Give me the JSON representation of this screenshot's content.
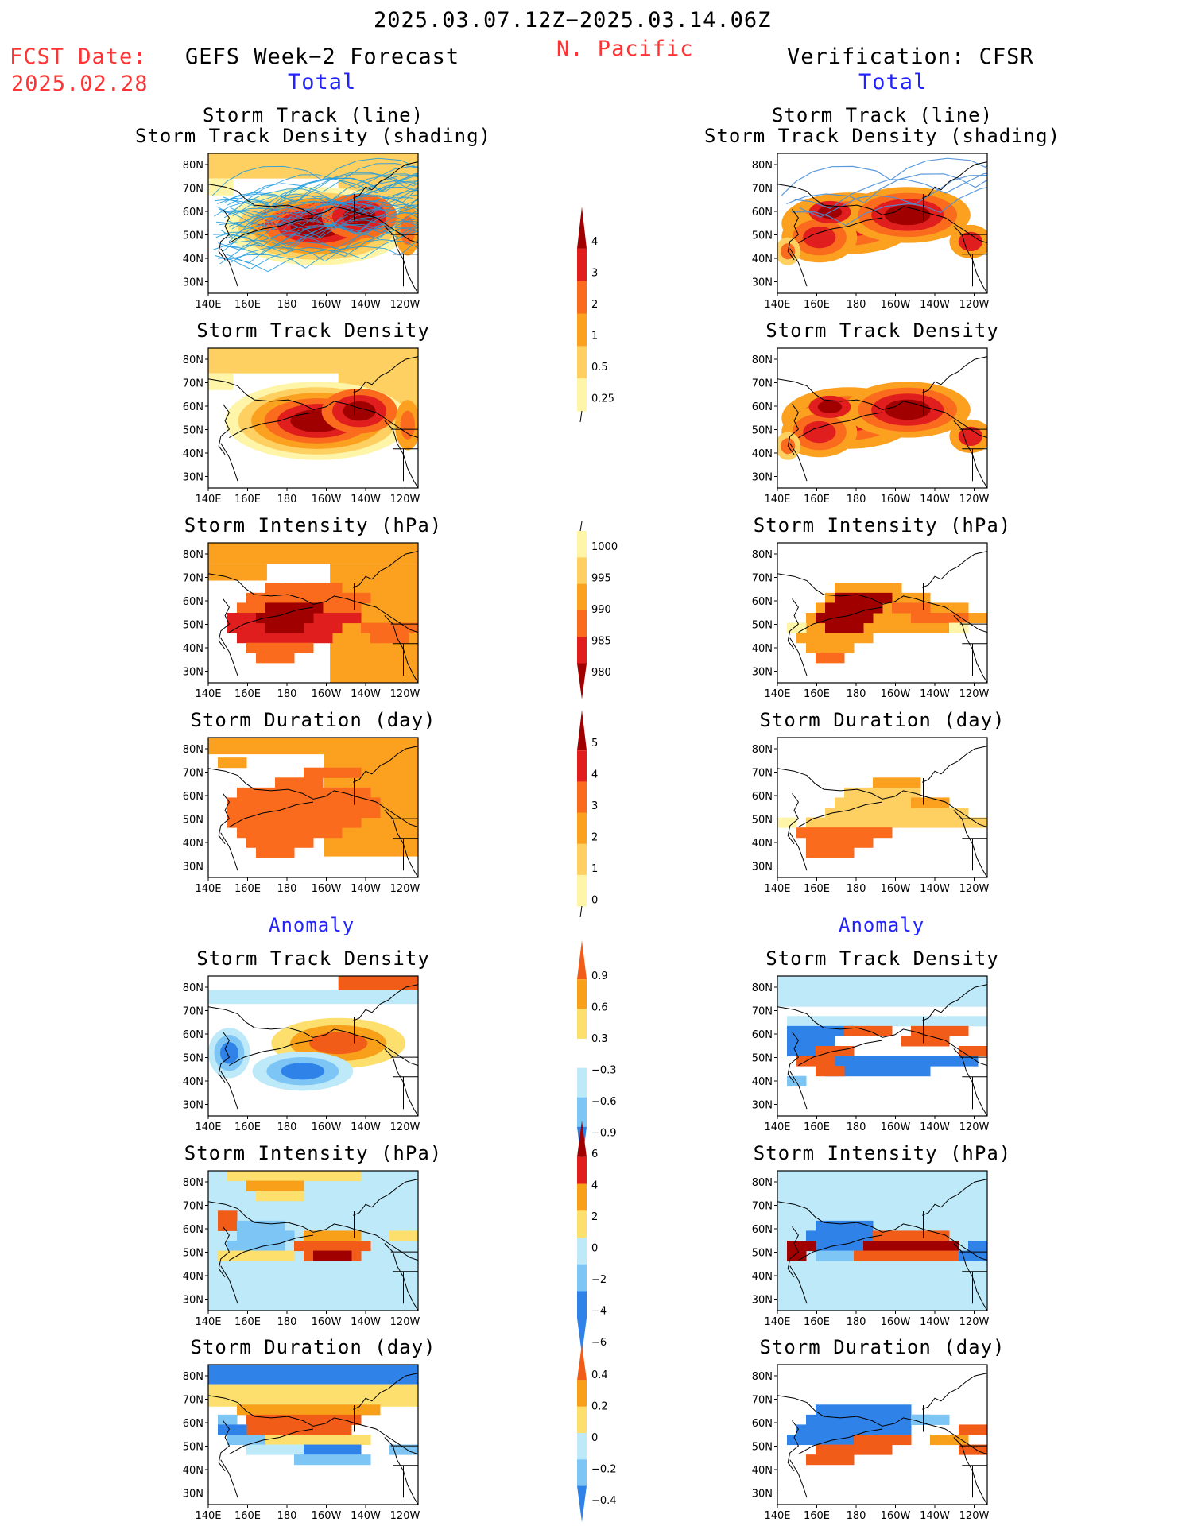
{
  "header": {
    "date_range": "2025.03.07.12Z−2025.03.14.06Z",
    "region": "N. Pacific",
    "fcst_label": "FCST Date:",
    "fcst_date": "2025.02.28",
    "left_title": "GEFS Week−2 Forecast",
    "right_title": "Verification: CFSR",
    "total_left": "Total",
    "total_right": "Total",
    "anom_left": "Anomaly",
    "anom_right": "Anomaly"
  },
  "panel_titles": {
    "p0a": "Storm Track (line)",
    "p0b": "Storm Track Density (shading)",
    "p1": "Storm Track Density",
    "p2": "Storm Intensity (hPa)",
    "p3": "Storm Duration (day)",
    "p4": "Storm Track Density",
    "p5": "Storm Intensity (hPa)",
    "p6": "Storm Duration (day)"
  },
  "axes": {
    "lat_ticks": [
      "80N",
      "70N",
      "60N",
      "50N",
      "40N",
      "30N"
    ],
    "lon_ticks": [
      "140E",
      "160E",
      "180",
      "160W",
      "140W",
      "120W"
    ]
  },
  "colorbars": {
    "density": [
      "4",
      "3",
      "2",
      "1",
      "0.5",
      "0.25"
    ],
    "intensity": [
      "1000",
      "995",
      "990",
      "985",
      "980"
    ],
    "duration": [
      "5",
      "4",
      "3",
      "2",
      "1",
      "0"
    ],
    "density_anom": [
      "0.9",
      "0.6",
      "0.3",
      "−0.3",
      "−0.6",
      "−0.9"
    ],
    "intensity_anom": [
      "6",
      "4",
      "2",
      "0",
      "−2",
      "−4",
      "−6"
    ],
    "duration_anom": [
      "0.4",
      "0.2",
      "0",
      "−0.2",
      "−0.4"
    ]
  },
  "colors": {
    "seq": [
      "#fff5a8",
      "#fdd061",
      "#fca020",
      "#fa6b1e",
      "#e01e1e",
      "#a00000"
    ],
    "div_pos": [
      "#fddf6e",
      "#f9a01b",
      "#f25c19"
    ],
    "div_neg": [
      "#bde9f9",
      "#7cc5f4",
      "#2f82e8"
    ],
    "track_line": "#1c9be0",
    "track_red": "#d9202a"
  }
}
